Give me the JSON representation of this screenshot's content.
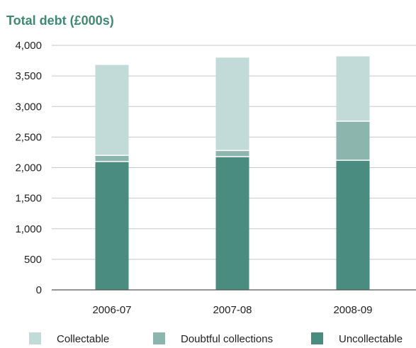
{
  "chart_data": {
    "type": "bar",
    "stacked": true,
    "title": "Total debt (£000s)",
    "xlabel": "",
    "ylabel": "",
    "categories": [
      "2006-07",
      "2007-08",
      "2008-09"
    ],
    "ylim": [
      0,
      4000
    ],
    "yticks": [
      0,
      500,
      1000,
      1500,
      2000,
      2500,
      3000,
      3500,
      4000
    ],
    "ytick_labels": [
      "0",
      "500",
      "1,000",
      "1,500",
      "2,000",
      "2,500",
      "3,000",
      "3,500",
      "4,000"
    ],
    "grid": true,
    "legend_position": "bottom",
    "series": [
      {
        "name": "Uncollectable",
        "color": "#4a8c80",
        "values": [
          2100,
          2180,
          2120
        ]
      },
      {
        "name": "Doubtful collections",
        "color": "#8cb5ae",
        "values": [
          100,
          100,
          640
        ]
      },
      {
        "name": "Collectable",
        "color": "#c3dbd8",
        "values": [
          1480,
          1520,
          1060
        ]
      }
    ],
    "legend_order": [
      "Collectable",
      "Doubtful collections",
      "Uncollectable"
    ],
    "title_color": "#3d8a72",
    "grid_color": "#c8c8c8",
    "axis_color": "#555555"
  }
}
